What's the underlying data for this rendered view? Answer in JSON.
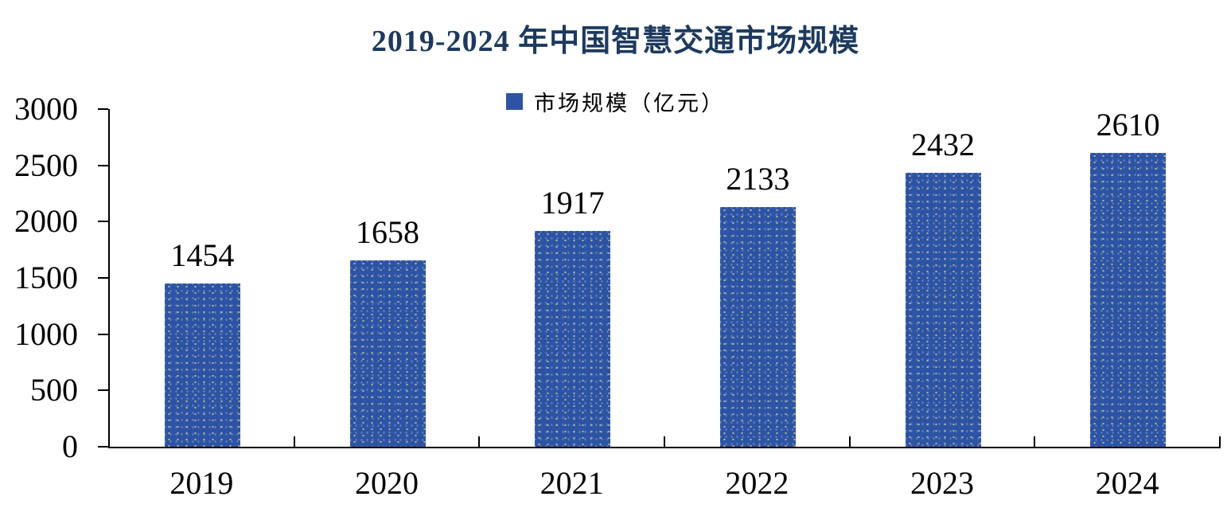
{
  "title": "2019-2024 年中国智慧交通市场规模",
  "legend": {
    "label": "市场规模（亿元）"
  },
  "chart_data": {
    "type": "bar",
    "title": "2019-2024 年中国智慧交通市场规模",
    "categories": [
      "2019",
      "2020",
      "2021",
      "2022",
      "2023",
      "2024"
    ],
    "series": [
      {
        "name": "市场规模（亿元）",
        "values": [
          1454,
          1658,
          1917,
          2133,
          2432,
          2610
        ]
      }
    ],
    "data_labels": [
      1454,
      1658,
      1917,
      2133,
      2432,
      2610
    ],
    "xlabel": "",
    "ylabel": "",
    "ylim": [
      0,
      3000
    ],
    "yticks": [
      0,
      500,
      1000,
      1500,
      2000,
      2500,
      3000
    ],
    "grid": false,
    "legend_position": "top-center",
    "bar_texture": "dotted"
  },
  "colors": {
    "bar": "#2d54a4",
    "title": "#1c3a5e",
    "axis": "#000000",
    "label": "#000000",
    "background": "#ffffff"
  }
}
